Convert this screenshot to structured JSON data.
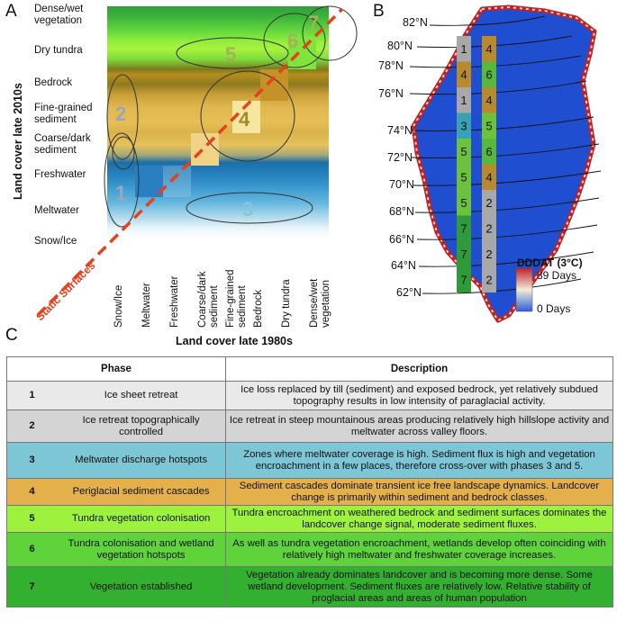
{
  "panel_letters": {
    "a": "A",
    "b": "B",
    "c": "C"
  },
  "matrix": {
    "y_title": "Land cover late 2010s",
    "x_title": "Land cover  late 1980s",
    "static_label": "Static Surfaces",
    "y_labels": [
      "Dense/wet\nvegetation",
      "Dry tundra",
      "Bedrock",
      "Fine-grained\nsediment",
      "Coarse/dark\nsediment",
      "Freshwater",
      "Meltwater",
      "Snow/Ice"
    ],
    "x_labels": [
      "Snow/Ice",
      "Meltwater",
      "Freshwater",
      "Coarse/dark\nsediment",
      "Fine-grained\nsediment",
      "Bedrock",
      "Dry tundra",
      "Dense/wet\nvegetation"
    ],
    "phase_numbers": [
      "1",
      "2",
      "3",
      "4",
      "5",
      "6",
      "7"
    ]
  },
  "map": {
    "latitudes": [
      "82°N",
      "80°N",
      "78°N",
      "76°N",
      "74°N",
      "72°N",
      "70°N",
      "68°N",
      "66°N",
      "64°N",
      "62°N"
    ],
    "strip_left": [
      "1",
      "4",
      "1",
      "3",
      "5",
      "5",
      "5",
      "7",
      "7",
      "7"
    ],
    "strip_right": [
      "4",
      "6",
      "4",
      "5",
      "6",
      "4",
      "2",
      "2",
      "2",
      "2"
    ],
    "legend_title": "DDDAT (3°C)",
    "legend_max": "39 Days",
    "legend_min": "0 Days",
    "colors": {
      "low": "#2b5fd9",
      "high": "#c0202a",
      "mid": "#f3ecd8"
    }
  },
  "table": {
    "header_phase": "Phase",
    "header_desc": "Description",
    "rows": [
      {
        "num": "1",
        "name": "Ice sheet retreat",
        "desc": "Ice loss replaced by till (sediment) and exposed bedrock, yet relatively subdued topography results in low intensity of paraglacial activity.",
        "color": "#e9e9e9"
      },
      {
        "num": "2",
        "name": "Ice retreat topographically controlled",
        "desc": "Ice retreat in steep mountainous areas producing relatively high hillslope activity and meltwater across valley floors.",
        "color": "#d4d4d4"
      },
      {
        "num": "3",
        "name": "Meltwater discharge hotspots",
        "desc": "Zones where meltwater coverage is high. Sediment flux is high and vegetation encroachment in a few places, therefore cross-over with phases 3 and 5.",
        "color": "#7dc6d6"
      },
      {
        "num": "4",
        "name": "Periglacial sediment cascades",
        "desc": "Sediment cascades dominate transient ice free landscape dynamics. Landcover change is primarily within sediment and bedrock classes.",
        "color": "#e3b04c"
      },
      {
        "num": "5",
        "name": "Tundra vegetation colonisation",
        "desc": "Tundra encroachment on weathered bedrock and sediment surfaces dominates the landcover change signal, moderate sediment fluxes.",
        "color": "#9cf23c"
      },
      {
        "num": "6",
        "name": "Tundra colonisation and wetland vegetation hotspots",
        "desc": "As well as tundra vegetation encroachment, wetlands develop often coinciding with relatively high meltwater and freshwater coverage increases.",
        "color": "#5fd43a"
      },
      {
        "num": "7",
        "name": "Vegetation established",
        "desc": "Vegetation already dominates landcover and is becoming more dense. Some wetland development.  Sediment fluxes are relatively low. Relative stability of proglacial areas and areas of human population",
        "color": "#33b02f"
      }
    ]
  }
}
